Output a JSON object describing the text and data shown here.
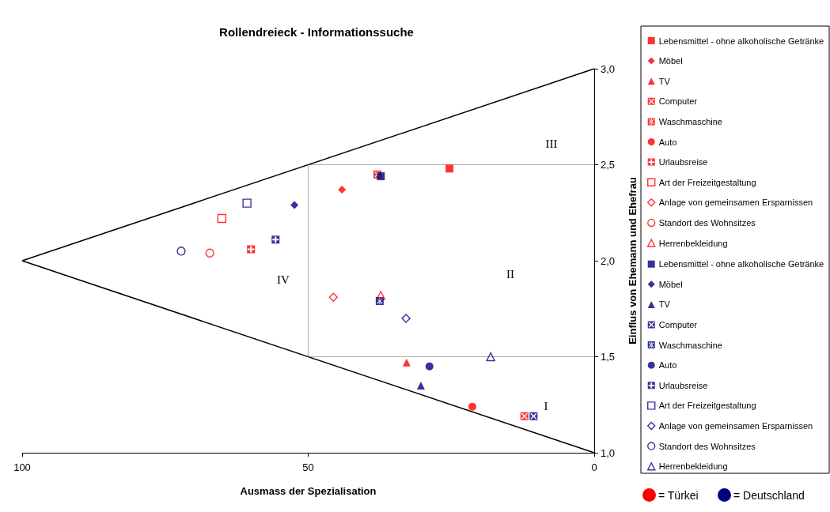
{
  "chart_data": {
    "type": "scatter",
    "title": "Rollendreieck - Informationssuche",
    "xlabel": "Ausmass der Spezialisation",
    "ylabel": "Einflus von Ehemann und Ehefrau",
    "xlim": [
      100,
      0
    ],
    "xticks": [
      100,
      50,
      0
    ],
    "ylim": [
      1,
      3
    ],
    "yticks": [
      {
        "value": 1,
        "label": "1,0"
      },
      {
        "value": 1.5,
        "label": "1,5"
      },
      {
        "value": 2,
        "label": "2,0"
      },
      {
        "value": 2.5,
        "label": "2,5"
      },
      {
        "value": 3,
        "label": "3,0"
      }
    ],
    "grid": false,
    "legend": "right",
    "annotations": [
      "III",
      "II",
      "IV",
      "I",
      "= Türkei",
      "= Deutschland"
    ],
    "series": [
      {
        "type": "line",
        "color": "#000000",
        "line_style": "solid",
        "marker": "none",
        "x": [
          100,
          0
        ],
        "values": [
          2.0,
          3.0
        ]
      },
      {
        "type": "line",
        "color": "#000000",
        "line_style": "solid",
        "marker": "none",
        "x": [
          100,
          0
        ],
        "values": [
          2.0,
          1.0
        ]
      },
      {
        "type": "line",
        "color": "#555555",
        "line_style": "dotted",
        "marker": "none",
        "x": [
          50,
          0
        ],
        "values": [
          2.5,
          2.5
        ]
      },
      {
        "type": "line",
        "color": "#555555",
        "line_style": "dotted",
        "marker": "none",
        "x": [
          50,
          0
        ],
        "values": [
          1.5,
          1.5
        ]
      },
      {
        "type": "line",
        "color": "#555555",
        "line_style": "dotted",
        "marker": "none",
        "x": [
          50,
          50
        ],
        "values": [
          1.5,
          2.5
        ]
      },
      {
        "name": "Lebensmittel - ohne alkoholische Getränke",
        "color": "#ff0000",
        "marker": "square",
        "x": [
          25.3
        ],
        "values": [
          2.48
        ]
      },
      {
        "name": "Möbel",
        "color": "#ff0000",
        "marker": "diamond",
        "x": [
          44.1
        ],
        "values": [
          2.37
        ]
      },
      {
        "name": "TV",
        "color": "#ff0000",
        "marker": "triangle",
        "x": [
          32.8
        ],
        "values": [
          1.47
        ]
      },
      {
        "name": "Computer",
        "color": "#ff0000",
        "marker": "square-cross",
        "x": [
          12.2
        ],
        "values": [
          1.19
        ]
      },
      {
        "name": "Waschmaschine",
        "color": "#ff0000",
        "marker": "square-star",
        "x": [
          37.9
        ],
        "values": [
          2.45
        ]
      },
      {
        "name": "Auto",
        "color": "#ff0000",
        "marker": "circle",
        "x": [
          21.3
        ],
        "values": [
          1.24
        ]
      },
      {
        "name": "Urlaubsreise",
        "color": "#ff0000",
        "marker": "square-plus",
        "x": [
          60.0
        ],
        "values": [
          2.06
        ]
      },
      {
        "name": "Art der Freizeitgestaltung",
        "color": "#ff0000",
        "marker": "square-open",
        "x": [
          65.1
        ],
        "values": [
          2.22
        ]
      },
      {
        "name": "Anlage von gemeinsamen Ersparnissen",
        "color": "#ff0000",
        "marker": "diamond-open",
        "x": [
          45.6
        ],
        "values": [
          1.81
        ]
      },
      {
        "name": "Standort des Wohnsitzes",
        "color": "#ff0000",
        "marker": "circle-open",
        "x": [
          67.2
        ],
        "values": [
          2.04
        ]
      },
      {
        "name": "Herrenbekleidung",
        "color": "#ff0000",
        "marker": "triangle-open",
        "x": [
          37.3
        ],
        "values": [
          1.82
        ]
      },
      {
        "name": "Lebensmittel - ohne alkoholische Getränke",
        "color": "#000080",
        "marker": "square",
        "x": [
          37.3
        ],
        "values": [
          2.44
        ]
      },
      {
        "name": "Möbel",
        "color": "#000080",
        "marker": "diamond",
        "x": [
          52.4
        ],
        "values": [
          2.29
        ]
      },
      {
        "name": "TV",
        "color": "#000080",
        "marker": "triangle",
        "x": [
          30.3
        ],
        "values": [
          1.35
        ]
      },
      {
        "name": "Computer",
        "color": "#000080",
        "marker": "square-cross",
        "x": [
          10.6
        ],
        "values": [
          1.19
        ]
      },
      {
        "name": "Waschmaschine",
        "color": "#000080",
        "marker": "square-star",
        "x": [
          37.5
        ],
        "values": [
          1.79
        ]
      },
      {
        "name": "Auto",
        "color": "#000080",
        "marker": "circle",
        "x": [
          28.8
        ],
        "values": [
          1.45
        ]
      },
      {
        "name": "Urlaubsreise",
        "color": "#000080",
        "marker": "square-plus",
        "x": [
          55.7
        ],
        "values": [
          2.11
        ]
      },
      {
        "name": "Art der Freizeitgestaltung",
        "color": "#000080",
        "marker": "square-open",
        "x": [
          60.7
        ],
        "values": [
          2.3
        ]
      },
      {
        "name": "Anlage von gemeinsamen Ersparnissen",
        "color": "#000080",
        "marker": "diamond-open",
        "x": [
          32.9
        ],
        "values": [
          1.7
        ]
      },
      {
        "name": "Standort des Wohnsitzes",
        "color": "#000080",
        "marker": "circle-open",
        "x": [
          72.2
        ],
        "values": [
          2.05
        ]
      },
      {
        "name": "Herrenbekleidung",
        "color": "#000080",
        "marker": "triangle-open",
        "x": [
          18.1
        ],
        "values": [
          1.5
        ]
      }
    ]
  }
}
